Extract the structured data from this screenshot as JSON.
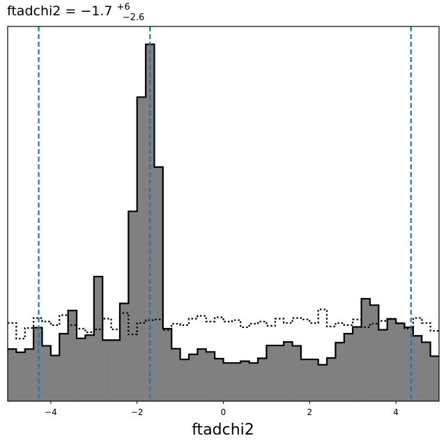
{
  "chart_data": {
    "type": "histogram",
    "title": {
      "prefix": "ftadchi2 = −1.7",
      "upper": "+6",
      "lower": "−2.6"
    },
    "xlabel": "ftadchi2",
    "ylabel": "",
    "xlim": [
      -5,
      5
    ],
    "ylim": [
      0,
      1.05
    ],
    "grid": false,
    "x_ticks": [
      -4,
      -2,
      0,
      2,
      4
    ],
    "x_tick_labels": [
      "−4",
      "−2",
      "0",
      "2",
      "4"
    ],
    "y_ticks_shown": false,
    "bin_edges": [
      -5.0,
      -4.8,
      -4.6,
      -4.4,
      -4.2,
      -4.0,
      -3.8,
      -3.6,
      -3.4,
      -3.2,
      -3.0,
      -2.8,
      -2.6,
      -2.4,
      -2.2,
      -2.0,
      -1.8,
      -1.6,
      -1.4,
      -1.2,
      -1.0,
      -0.8,
      -0.6,
      -0.4,
      -0.2,
      0.0,
      0.2,
      0.4,
      0.6,
      0.8,
      1.0,
      1.2,
      1.4,
      1.6,
      1.8,
      2.0,
      2.2,
      2.4,
      2.6,
      2.8,
      3.0,
      3.2,
      3.4,
      3.6,
      3.8,
      4.0,
      4.2,
      4.4,
      4.6,
      4.8,
      5.0
    ],
    "series": [
      {
        "style": "filled-gray-step",
        "values": [
          0.146,
          0.137,
          0.146,
          0.206,
          0.155,
          0.128,
          0.189,
          0.254,
          0.176,
          0.185,
          0.349,
          0.171,
          0.171,
          0.274,
          0.532,
          0.852,
          1.0,
          0.656,
          0.203,
          0.147,
          0.117,
          0.131,
          0.146,
          0.138,
          0.119,
          0.107,
          0.107,
          0.112,
          0.107,
          0.12,
          0.156,
          0.156,
          0.166,
          0.155,
          0.117,
          0.117,
          0.102,
          0.121,
          0.164,
          0.189,
          0.208,
          0.287,
          0.269,
          0.2,
          0.23,
          0.218,
          0.207,
          0.183,
          0.165,
          0.126
        ]
      },
      {
        "style": "dotted-step",
        "values": [
          0.219,
          0.175,
          0.205,
          0.233,
          0.223,
          0.213,
          0.241,
          0.213,
          0.203,
          0.193,
          0.201,
          0.231,
          0.201,
          0.247,
          0.187,
          0.219,
          0.227,
          0.229,
          0.199,
          0.217,
          0.213,
          0.231,
          0.239,
          0.223,
          0.235,
          0.223,
          0.227,
          0.207,
          0.217,
          0.223,
          0.211,
          0.231,
          0.219,
          0.233,
          0.229,
          0.219,
          0.257,
          0.209,
          0.219,
          0.213,
          0.229,
          0.207,
          0.217,
          0.225,
          0.231,
          0.219,
          0.203,
          0.233,
          0.219,
          0.197
        ]
      }
    ],
    "vlines": [
      -4.28,
      -1.7,
      4.35
    ],
    "vline_color": "#1f77b4",
    "fill_color": "#808080",
    "line_color": "#000000"
  }
}
